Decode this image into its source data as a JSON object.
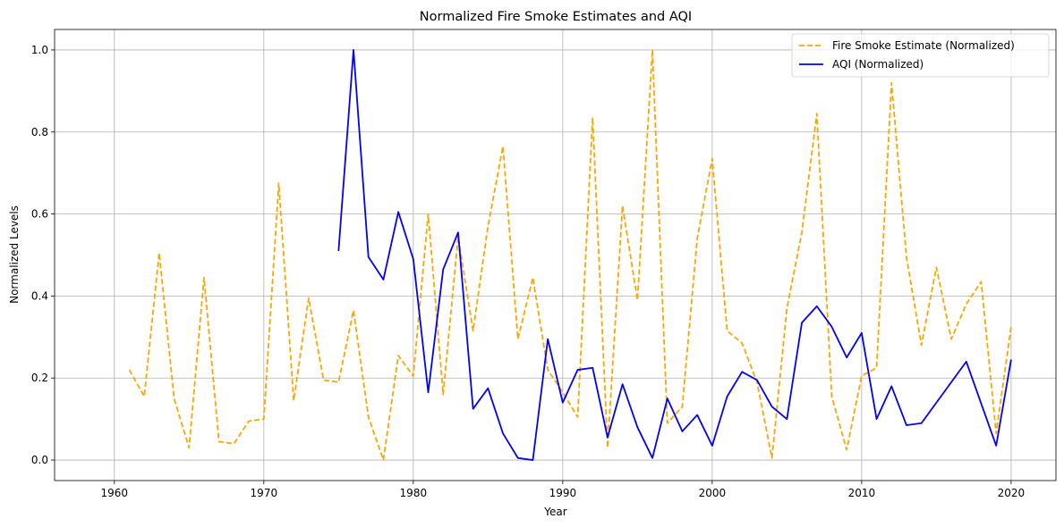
{
  "chart_data": {
    "type": "line",
    "title": "Normalized Fire Smoke Estimates and AQI",
    "xlabel": "Year",
    "ylabel": "Normalized Levels",
    "xlim": [
      1956,
      2023
    ],
    "ylim": [
      -0.05,
      1.05
    ],
    "x_ticks": [
      1960,
      1970,
      1980,
      1990,
      2000,
      2010,
      2020
    ],
    "y_ticks": [
      0.0,
      0.2,
      0.4,
      0.6,
      0.8,
      1.0
    ],
    "x_tick_labels": [
      "1960",
      "1970",
      "1980",
      "1990",
      "2000",
      "2010",
      "2020"
    ],
    "y_tick_labels": [
      "0.0",
      "0.2",
      "0.4",
      "0.6",
      "0.8",
      "1.0"
    ],
    "grid": true,
    "legend_position": "top-right",
    "series": [
      {
        "name": "Fire Smoke Estimate (Normalized)",
        "color": "#ffa500",
        "style": "dashed",
        "x": [
          1961,
          1962,
          1963,
          1964,
          1965,
          1966,
          1967,
          1968,
          1969,
          1970,
          1971,
          1972,
          1973,
          1974,
          1975,
          1976,
          1977,
          1978,
          1979,
          1980,
          1981,
          1982,
          1983,
          1984,
          1985,
          1986,
          1987,
          1988,
          1989,
          1990,
          1991,
          1992,
          1993,
          1994,
          1995,
          1996,
          1997,
          1998,
          1999,
          2000,
          2001,
          2002,
          2003,
          2004,
          2005,
          2006,
          2007,
          2008,
          2009,
          2010,
          2011,
          2012,
          2013,
          2014,
          2015,
          2016,
          2017,
          2018,
          2019,
          2020
        ],
        "values": [
          0.22,
          0.155,
          0.505,
          0.15,
          0.03,
          0.445,
          0.045,
          0.04,
          0.095,
          0.1,
          0.675,
          0.145,
          0.395,
          0.195,
          0.19,
          0.365,
          0.105,
          0.0,
          0.255,
          0.205,
          0.6,
          0.16,
          0.545,
          0.315,
          0.57,
          0.765,
          0.295,
          0.445,
          0.22,
          0.165,
          0.105,
          0.835,
          0.03,
          0.62,
          0.39,
          1.0,
          0.09,
          0.13,
          0.54,
          0.735,
          0.315,
          0.285,
          0.19,
          0.005,
          0.37,
          0.555,
          0.845,
          0.155,
          0.025,
          0.205,
          0.225,
          0.92,
          0.495,
          0.28,
          0.47,
          0.295,
          0.38,
          0.435,
          0.065,
          0.325
        ]
      },
      {
        "name": "AQI (Normalized)",
        "color": "#0000ff",
        "style": "solid",
        "x": [
          1975,
          1976,
          1977,
          1978,
          1979,
          1980,
          1981,
          1982,
          1983,
          1984,
          1985,
          1986,
          1987,
          1988,
          1989,
          1990,
          1991,
          1992,
          1993,
          1994,
          1995,
          1996,
          1997,
          1998,
          1999,
          2000,
          2001,
          2002,
          2003,
          2004,
          2005,
          2006,
          2007,
          2008,
          2009,
          2010,
          2011,
          2012,
          2013,
          2014,
          2017,
          2019,
          2020
        ],
        "values": [
          0.51,
          1.0,
          0.495,
          0.44,
          0.605,
          0.49,
          0.165,
          0.465,
          0.555,
          0.125,
          0.175,
          0.065,
          0.005,
          0.0,
          0.295,
          0.14,
          0.22,
          0.225,
          0.055,
          0.185,
          0.08,
          0.005,
          0.15,
          0.07,
          0.11,
          0.035,
          0.155,
          0.215,
          0.195,
          0.13,
          0.1,
          0.335,
          0.375,
          0.325,
          0.25,
          0.31,
          0.1,
          0.18,
          0.085,
          0.09,
          0.24,
          0.035,
          0.245
        ]
      }
    ]
  }
}
